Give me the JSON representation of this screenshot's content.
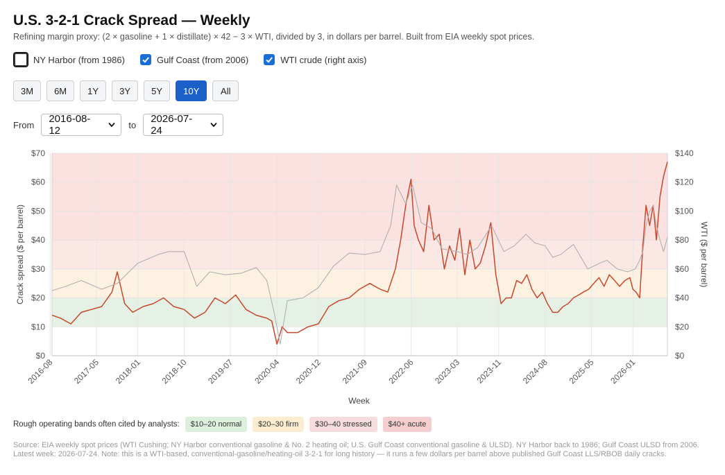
{
  "header": {
    "title": "U.S. 3-2-1 Crack Spread — Weekly",
    "subtitle": "Refining margin proxy: (2 × gasoline + 1 × distillate) × 42 − 3 × WTI, divided by 3, in dollars per barrel. Built from EIA weekly spot prices."
  },
  "toggles": [
    {
      "label": "NY Harbor (from 1986)",
      "checked": false
    },
    {
      "label": "Gulf Coast (from 2006)",
      "checked": true
    },
    {
      "label": "WTI crude (right axis)",
      "checked": true
    }
  ],
  "ranges": [
    {
      "label": "3M",
      "active": false
    },
    {
      "label": "6M",
      "active": false
    },
    {
      "label": "1Y",
      "active": false
    },
    {
      "label": "3Y",
      "active": false
    },
    {
      "label": "5Y",
      "active": false
    },
    {
      "label": "10Y",
      "active": true
    },
    {
      "label": "All",
      "active": false
    }
  ],
  "date_range": {
    "from_label": "From",
    "from": "2016-08-12",
    "to_label": "to",
    "to": "2026-07-24"
  },
  "bands_legend": {
    "label": "Rough operating bands often cited by analysts:",
    "chips": [
      {
        "label": "$10–20 normal",
        "color": "#dcefdc"
      },
      {
        "label": "$20–30 firm",
        "color": "#fdeed3"
      },
      {
        "label": "$30–40 stressed",
        "color": "#f8dddd"
      },
      {
        "label": "$40+ acute",
        "color": "#f6d3d3"
      }
    ]
  },
  "footer": "Source: EIA weekly spot prices (WTI Cushing; NY Harbor conventional gasoline & No. 2 heating oil; U.S. Gulf Coast conventional gasoline & ULSD). NY Harbor back to 1986; Gulf Coast ULSD from 2006. Latest week: 2026-07-24. Note: this is a WTI-based, conventional-gasoline/heating-oil 3-2-1 for long history — it runs a few dollars per barrel above published Gulf Coast LLS/RBOB daily cracks.",
  "colors": {
    "accent": "#1b5fc9",
    "crack_line": "#c8472b",
    "wti_line": "#b0b0b0"
  },
  "chart_data": {
    "type": "line",
    "xlabel": "Week",
    "ylabel": "Crack spread ($ per barrel)",
    "y2label": "WTI ($ per barrel)",
    "ylim": [
      0,
      70
    ],
    "y2lim": [
      0,
      140
    ],
    "yticks": [
      "$0",
      "$10",
      "$20",
      "$30",
      "$40",
      "$50",
      "$60",
      "$70"
    ],
    "y2ticks": [
      "$0",
      "$20",
      "$40",
      "$60",
      "$80",
      "$100",
      "$120",
      "$140"
    ],
    "xticks": [
      "2016-08",
      "2017-05",
      "2018-01",
      "2018-10",
      "2019-07",
      "2020-04",
      "2020-12",
      "2021-09",
      "2022-06",
      "2023-03",
      "2023-11",
      "2024-08",
      "2025-05",
      "2026-01"
    ],
    "xlim": [
      "2016-08-12",
      "2026-07-24"
    ],
    "grid": true,
    "bands": [
      {
        "from": 10,
        "to": 20,
        "label": "normal",
        "color": "#e6f1e6"
      },
      {
        "from": 20,
        "to": 30,
        "label": "firm",
        "color": "#fdf2e2"
      },
      {
        "from": 30,
        "to": 40,
        "label": "stressed",
        "color": "#fbe7e4"
      },
      {
        "from": 40,
        "to": 70,
        "label": "acute",
        "color": "#fbe1df"
      }
    ],
    "series": [
      {
        "name": "Gulf Coast",
        "axis": "left",
        "color": "#c8472b",
        "x": [
          "2016-08-12",
          "2016-10-01",
          "2016-12-01",
          "2017-02-01",
          "2017-04-01",
          "2017-06-01",
          "2017-08-01",
          "2017-09-01",
          "2017-10-15",
          "2017-12-01",
          "2018-02-01",
          "2018-04-01",
          "2018-06-01",
          "2018-08-01",
          "2018-10-01",
          "2018-12-01",
          "2019-02-01",
          "2019-04-01",
          "2019-06-01",
          "2019-08-01",
          "2019-10-01",
          "2019-12-01",
          "2020-02-01",
          "2020-03-01",
          "2020-04-01",
          "2020-05-01",
          "2020-06-01",
          "2020-08-01",
          "2020-10-01",
          "2020-12-01",
          "2021-02-01",
          "2021-04-01",
          "2021-06-01",
          "2021-08-01",
          "2021-10-01",
          "2021-12-01",
          "2022-01-15",
          "2022-03-01",
          "2022-04-01",
          "2022-05-01",
          "2022-06-01",
          "2022-06-20",
          "2022-07-15",
          "2022-08-15",
          "2022-09-15",
          "2022-10-15",
          "2022-11-15",
          "2022-12-15",
          "2023-01-15",
          "2023-02-15",
          "2023-03-15",
          "2023-04-15",
          "2023-05-15",
          "2023-06-15",
          "2023-07-15",
          "2023-08-15",
          "2023-09-15",
          "2023-10-15",
          "2023-11-15",
          "2023-12-15",
          "2024-01-15",
          "2024-02-15",
          "2024-03-15",
          "2024-04-15",
          "2024-05-15",
          "2024-06-15",
          "2024-07-15",
          "2024-08-15",
          "2024-09-15",
          "2024-10-15",
          "2024-11-15",
          "2024-12-15",
          "2025-01-15",
          "2025-02-15",
          "2025-03-15",
          "2025-04-15",
          "2025-05-15",
          "2025-06-15",
          "2025-07-15",
          "2025-08-15",
          "2025-09-15",
          "2025-10-15",
          "2025-11-15",
          "2025-12-15",
          "2026-01-01",
          "2026-01-20",
          "2026-02-10",
          "2026-03-01",
          "2026-03-20",
          "2026-04-10",
          "2026-05-01",
          "2026-05-20",
          "2026-06-10",
          "2026-07-01",
          "2026-07-24"
        ],
        "values": [
          14,
          13,
          11,
          15,
          16,
          17,
          22,
          29,
          18,
          15,
          17,
          18,
          20,
          17,
          16,
          13,
          15,
          20,
          18,
          21,
          16,
          14,
          13,
          12,
          4,
          10,
          8,
          8,
          10,
          11,
          17,
          19,
          20,
          23,
          25,
          23,
          22,
          30,
          40,
          52,
          61,
          45,
          40,
          36,
          52,
          40,
          42,
          30,
          38,
          33,
          44,
          28,
          40,
          30,
          32,
          38,
          46,
          28,
          18,
          20,
          20,
          26,
          25,
          28,
          23,
          20,
          22,
          18,
          15,
          15,
          17,
          18,
          20,
          21,
          22,
          23,
          25,
          27,
          24,
          28,
          26,
          24,
          26,
          27,
          23,
          22,
          20,
          38,
          52,
          45,
          52,
          40,
          55,
          62,
          67
        ]
      },
      {
        "name": "WTI crude",
        "axis": "right",
        "color": "#b0b0b0",
        "x": [
          "2016-08-12",
          "2016-11-01",
          "2017-02-01",
          "2017-06-01",
          "2017-09-01",
          "2018-01-01",
          "2018-05-01",
          "2018-07-01",
          "2018-10-01",
          "2018-12-15",
          "2019-03-01",
          "2019-06-01",
          "2019-09-01",
          "2019-12-01",
          "2020-02-01",
          "2020-03-15",
          "2020-04-20",
          "2020-06-01",
          "2020-09-01",
          "2020-12-01",
          "2021-03-01",
          "2021-06-01",
          "2021-09-01",
          "2021-12-01",
          "2022-02-01",
          "2022-03-08",
          "2022-05-01",
          "2022-06-10",
          "2022-08-01",
          "2022-10-01",
          "2022-12-01",
          "2023-03-01",
          "2023-05-01",
          "2023-07-01",
          "2023-09-20",
          "2023-12-01",
          "2024-02-01",
          "2024-04-10",
          "2024-06-01",
          "2024-08-01",
          "2024-09-15",
          "2024-11-01",
          "2025-01-15",
          "2025-04-10",
          "2025-06-20",
          "2025-08-01",
          "2025-10-01",
          "2025-12-01",
          "2026-01-15",
          "2026-02-10",
          "2026-03-01",
          "2026-03-20",
          "2026-04-10",
          "2026-05-01",
          "2026-05-20",
          "2026-06-10",
          "2026-07-01",
          "2026-07-24"
        ],
        "values": [
          45,
          48,
          52,
          46,
          50,
          64,
          70,
          72,
          72,
          48,
          58,
          56,
          57,
          61,
          52,
          30,
          8,
          38,
          40,
          47,
          62,
          71,
          70,
          72,
          90,
          118,
          105,
          118,
          92,
          88,
          74,
          72,
          70,
          75,
          90,
          72,
          76,
          84,
          78,
          76,
          68,
          70,
          77,
          60,
          64,
          66,
          60,
          58,
          60,
          66,
          72,
          90,
          100,
          104,
          90,
          80,
          72,
          82
        ]
      }
    ]
  }
}
